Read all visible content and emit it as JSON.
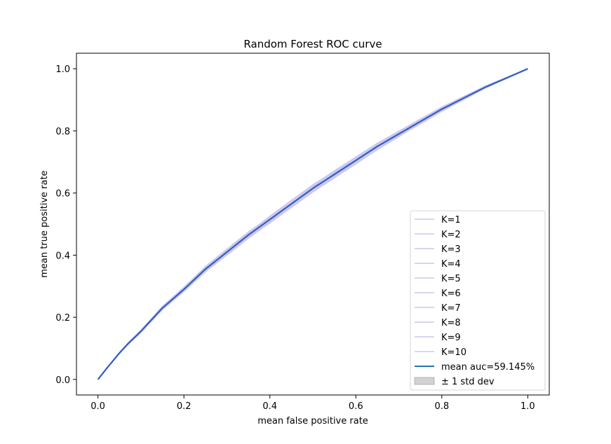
{
  "chart_data": {
    "type": "line",
    "title": "Random Forest ROC curve",
    "xlabel": "mean false positive rate",
    "ylabel": "mean true positive rate",
    "xlim": [
      -0.05,
      1.05
    ],
    "ylim": [
      -0.05,
      1.05
    ],
    "x_ticks": [
      "0.0",
      "0.2",
      "0.4",
      "0.6",
      "0.8",
      "1.0"
    ],
    "y_ticks": [
      "0.0",
      "0.2",
      "0.4",
      "0.6",
      "0.8",
      "1.0"
    ],
    "grid": false,
    "legend_position": "lower-right",
    "mean_curve": {
      "name": "mean auc=59.145%",
      "color": "#1f77b4",
      "x": [
        0.0,
        0.02,
        0.05,
        0.07,
        0.1,
        0.15,
        0.2,
        0.25,
        0.3,
        0.35,
        0.4,
        0.45,
        0.5,
        0.55,
        0.6,
        0.65,
        0.7,
        0.75,
        0.8,
        0.85,
        0.9,
        0.95,
        1.0
      ],
      "y": [
        0.0,
        0.035,
        0.085,
        0.115,
        0.155,
        0.23,
        0.29,
        0.355,
        0.41,
        0.465,
        0.515,
        0.565,
        0.615,
        0.66,
        0.705,
        0.75,
        0.79,
        0.83,
        0.87,
        0.905,
        0.94,
        0.97,
        1.0
      ]
    },
    "series": [
      {
        "name": "K=1",
        "color": "#c8c8ef"
      },
      {
        "name": "K=2",
        "color": "#c8c8ef"
      },
      {
        "name": "K=3",
        "color": "#d2c4ef"
      },
      {
        "name": "K=4",
        "color": "#c8c8ef"
      },
      {
        "name": "K=5",
        "color": "#d2c4ef"
      },
      {
        "name": "K=6",
        "color": "#c8c8ef"
      },
      {
        "name": "K=7",
        "color": "#d2c4ef"
      },
      {
        "name": "K=8",
        "color": "#c8c8ef"
      },
      {
        "name": "K=9",
        "color": "#d2c4ef"
      },
      {
        "name": "K=10",
        "color": "#c8c8ef"
      }
    ],
    "std_band": {
      "name": "± 1 std dev",
      "color": "#bfbfbf"
    }
  }
}
